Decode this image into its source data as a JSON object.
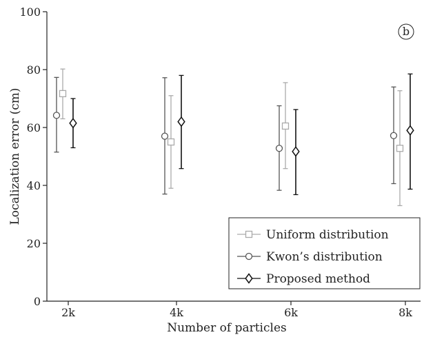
{
  "chart_data": {
    "type": "scatter",
    "subtype": "errorbar",
    "panel_label": "b",
    "xlabel": "Number of particles",
    "ylabel": "Localization error (cm)",
    "categories": [
      "2k",
      "4k",
      "6k",
      "8k"
    ],
    "ylim": [
      0,
      100
    ],
    "yticks": [
      0,
      20,
      40,
      60,
      80,
      100
    ],
    "grid": false,
    "legend_position": "bottom-right",
    "series": [
      {
        "name": "Kwon’s distribution",
        "marker": "circle",
        "color": "#555555",
        "values": [
          64.2,
          57.0,
          52.8,
          57.2
        ],
        "lower": [
          51.5,
          37.0,
          38.3,
          40.6
        ],
        "upper": [
          77.3,
          77.2,
          67.5,
          74.0
        ]
      },
      {
        "name": "Uniform distribution",
        "marker": "square",
        "color": "#aaaaaa",
        "values": [
          71.7,
          55.0,
          60.5,
          52.8
        ],
        "lower": [
          63.0,
          39.0,
          45.8,
          33.0
        ],
        "upper": [
          80.2,
          71.0,
          75.5,
          72.7
        ]
      },
      {
        "name": "Proposed method",
        "marker": "diamond",
        "color": "#111111",
        "values": [
          61.5,
          62.0,
          51.7,
          59.0
        ],
        "lower": [
          53.0,
          45.8,
          36.8,
          38.7
        ],
        "upper": [
          70.0,
          78.0,
          66.2,
          78.5
        ]
      }
    ],
    "legend_order": [
      "Uniform distribution",
      "Kwon’s distribution",
      "Proposed method"
    ]
  }
}
